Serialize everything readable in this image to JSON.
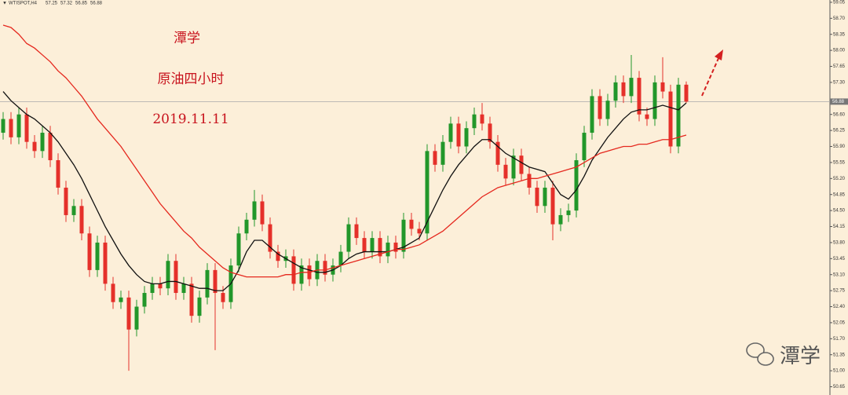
{
  "chart_data": {
    "type": "candlestick",
    "symbol": "WTISPOT,H4",
    "title": "潭学",
    "subtitle": "原油四小时",
    "date": "2019.11.11",
    "watermark": "潭学",
    "up_color": "#22972a",
    "down_color": "#e5302a",
    "open": [
      56.2,
      56.5,
      56.1,
      56.6,
      56.0,
      55.8,
      56.2,
      55.6,
      55.0,
      54.4,
      54.6,
      54.0,
      53.2,
      53.8,
      52.9,
      52.5,
      52.6,
      51.9,
      52.4,
      52.7,
      52.9,
      52.8,
      53.4,
      52.7,
      52.9,
      52.2,
      52.6,
      53.2,
      52.7,
      52.5,
      53.3,
      54.0,
      54.3,
      54.7,
      54.2,
      53.6,
      53.4,
      53.5,
      52.9,
      53.3,
      53.0,
      53.4,
      53.1,
      53.3,
      53.6,
      54.2,
      53.9,
      53.6,
      53.9,
      53.5,
      53.8,
      53.6,
      54.3,
      54.1,
      54.0,
      55.8,
      55.5,
      56.0,
      56.4,
      55.9,
      56.3,
      56.6,
      56.4,
      56.0,
      55.5,
      55.2,
      55.7,
      55.3,
      55.0,
      54.6,
      55.0,
      54.2,
      54.4,
      54.5,
      55.6,
      56.2,
      57.0,
      56.5,
      56.9,
      57.3,
      57.0,
      57.4,
      56.6,
      56.5,
      57.3,
      57.1,
      55.9,
      57.25
    ],
    "high": [
      56.65,
      56.65,
      56.75,
      56.75,
      56.15,
      56.35,
      56.35,
      55.75,
      55.15,
      54.75,
      54.75,
      54.15,
      53.95,
      53.95,
      53.05,
      52.75,
      52.75,
      52.55,
      52.85,
      53.05,
      53.05,
      53.55,
      53.55,
      53.05,
      53.05,
      52.75,
      53.35,
      53.35,
      52.85,
      53.45,
      54.15,
      54.45,
      54.95,
      54.85,
      54.35,
      53.75,
      53.65,
      53.65,
      53.45,
      53.45,
      53.55,
      53.55,
      53.45,
      53.75,
      54.35,
      54.35,
      54.05,
      54.05,
      54.05,
      53.95,
      53.95,
      54.45,
      54.45,
      54.25,
      55.95,
      55.95,
      56.15,
      56.55,
      56.55,
      56.45,
      56.75,
      56.85,
      56.55,
      56.15,
      55.65,
      55.85,
      55.85,
      55.45,
      55.15,
      55.15,
      55.15,
      54.55,
      54.65,
      55.75,
      56.35,
      57.15,
      57.15,
      57.05,
      57.45,
      57.45,
      57.9,
      57.55,
      56.75,
      57.45,
      57.85,
      57.25,
      57.4,
      57.32
    ],
    "low": [
      56.05,
      55.95,
      55.95,
      55.85,
      55.65,
      55.65,
      55.45,
      54.85,
      54.25,
      54.25,
      53.85,
      53.05,
      53.05,
      52.75,
      52.35,
      52.35,
      51.0,
      51.75,
      52.25,
      52.55,
      52.65,
      52.65,
      52.55,
      52.55,
      52.05,
      52.05,
      52.45,
      51.45,
      52.35,
      52.35,
      53.15,
      53.85,
      54.15,
      54.05,
      53.45,
      53.25,
      53.25,
      52.75,
      52.75,
      52.85,
      52.85,
      52.95,
      52.95,
      53.15,
      53.45,
      53.75,
      53.45,
      53.45,
      53.35,
      53.35,
      53.45,
      53.45,
      53.95,
      53.85,
      53.85,
      55.35,
      55.35,
      55.85,
      55.75,
      55.75,
      56.15,
      56.25,
      55.85,
      55.35,
      55.05,
      55.05,
      55.15,
      54.85,
      54.45,
      54.45,
      53.85,
      54.05,
      54.25,
      54.35,
      55.45,
      56.05,
      56.35,
      56.35,
      56.75,
      56.85,
      56.85,
      56.45,
      56.35,
      56.35,
      56.95,
      55.75,
      55.75,
      56.85
    ],
    "close": [
      56.5,
      56.1,
      56.6,
      56.0,
      55.8,
      56.2,
      55.6,
      55.0,
      54.4,
      54.6,
      54.0,
      53.2,
      53.8,
      52.9,
      52.5,
      52.6,
      51.9,
      52.4,
      52.7,
      52.9,
      52.8,
      53.4,
      52.7,
      52.9,
      52.2,
      52.6,
      53.2,
      52.7,
      52.5,
      53.3,
      54.0,
      54.3,
      54.7,
      54.2,
      53.6,
      53.4,
      53.5,
      52.9,
      53.3,
      53.0,
      53.4,
      53.1,
      53.3,
      53.6,
      54.2,
      53.9,
      53.6,
      53.9,
      53.5,
      53.8,
      53.6,
      54.3,
      54.1,
      54.0,
      55.8,
      55.5,
      56.0,
      56.4,
      55.9,
      56.3,
      56.6,
      56.4,
      56.0,
      55.5,
      55.2,
      55.7,
      55.3,
      55.0,
      54.6,
      55.0,
      54.2,
      54.4,
      54.5,
      55.6,
      56.2,
      57.0,
      56.5,
      56.9,
      57.3,
      57.0,
      57.4,
      56.6,
      56.5,
      57.3,
      57.1,
      55.9,
      57.25,
      56.88
    ],
    "lines": [
      {
        "color": "#111111",
        "values": [
          57.1,
          56.9,
          56.75,
          56.6,
          56.5,
          56.35,
          56.2,
          56.0,
          55.75,
          55.5,
          55.2,
          54.85,
          54.5,
          54.15,
          53.85,
          53.55,
          53.3,
          53.1,
          52.95,
          52.9,
          52.9,
          52.95,
          52.95,
          52.9,
          52.85,
          52.8,
          52.8,
          52.75,
          52.75,
          52.9,
          53.2,
          53.6,
          53.85,
          53.85,
          53.7,
          53.55,
          53.45,
          53.35,
          53.25,
          53.2,
          53.15,
          53.15,
          53.2,
          53.3,
          53.45,
          53.55,
          53.6,
          53.6,
          53.6,
          53.6,
          53.65,
          53.7,
          53.8,
          53.9,
          54.25,
          54.6,
          54.95,
          55.25,
          55.5,
          55.7,
          55.9,
          56.05,
          56.05,
          55.9,
          55.75,
          55.65,
          55.55,
          55.45,
          55.4,
          55.35,
          55.1,
          54.85,
          54.75,
          54.95,
          55.25,
          55.6,
          55.85,
          56.1,
          56.3,
          56.5,
          56.65,
          56.7,
          56.7,
          56.75,
          56.8,
          56.75,
          56.7,
          56.85
        ]
      },
      {
        "color": "#e5281e",
        "values": [
          58.55,
          58.5,
          58.35,
          58.15,
          58.05,
          57.9,
          57.75,
          57.55,
          57.4,
          57.2,
          57.0,
          56.75,
          56.5,
          56.3,
          56.1,
          55.9,
          55.65,
          55.4,
          55.15,
          54.9,
          54.65,
          54.45,
          54.25,
          54.05,
          53.9,
          53.7,
          53.55,
          53.4,
          53.25,
          53.15,
          53.1,
          53.05,
          53.05,
          53.05,
          53.05,
          53.05,
          53.1,
          53.1,
          53.15,
          53.15,
          53.2,
          53.2,
          53.25,
          53.3,
          53.35,
          53.4,
          53.45,
          53.5,
          53.55,
          53.6,
          53.65,
          53.65,
          53.7,
          53.75,
          53.85,
          53.95,
          54.05,
          54.2,
          54.35,
          54.5,
          54.65,
          54.8,
          54.9,
          55.0,
          55.05,
          55.1,
          55.15,
          55.2,
          55.2,
          55.25,
          55.3,
          55.35,
          55.4,
          55.45,
          55.55,
          55.65,
          55.75,
          55.8,
          55.85,
          55.9,
          55.9,
          55.95,
          55.95,
          56.0,
          56.05,
          56.05,
          56.1,
          56.15
        ]
      }
    ],
    "ylim": [
      50.47,
      59.1
    ],
    "yticks": [
      59.05,
      {
        "value": 58.7,
        "label": "58.70"
      },
      58.35,
      {
        "value": 58.0,
        "label": "58.00"
      },
      57.65,
      {
        "value": 57.3,
        "label": "57.30"
      },
      {
        "value": 56.6,
        "label": "56.60"
      },
      56.25,
      {
        "value": 55.9,
        "label": "55.90"
      },
      55.55,
      {
        "value": 55.2,
        "label": "55.20"
      },
      54.85,
      {
        "value": 54.5,
        "label": "54.50"
      },
      54.15,
      {
        "value": 53.8,
        "label": "53.80"
      },
      53.45,
      {
        "value": 53.1,
        "label": "53.10"
      },
      52.75,
      {
        "value": 52.4,
        "label": "52.40"
      },
      52.05,
      {
        "value": 51.7,
        "label": "51.70"
      },
      51.35,
      {
        "value": 51.0,
        "label": "51.00"
      },
      50.65
    ]
  }
}
